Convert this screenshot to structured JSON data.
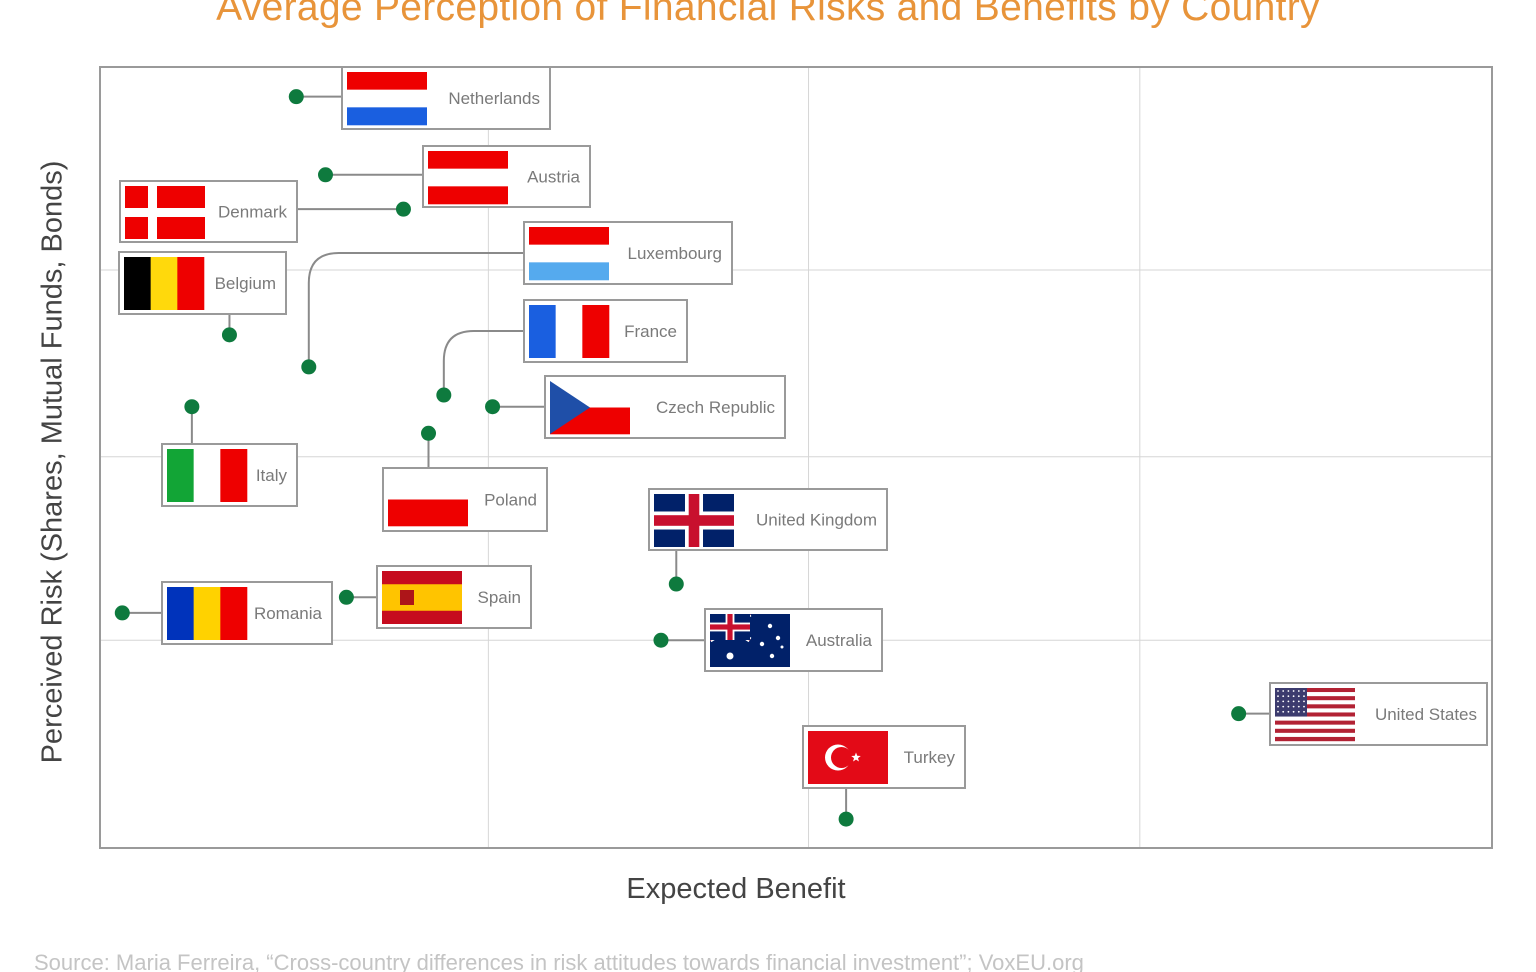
{
  "chart_data": {
    "type": "scatter",
    "title": "Average Perception of Financial Risks and Benefits by Country",
    "xlabel": "Expected Benefit",
    "ylabel": "Perceived Risk (Shares, Mutual Funds, Bonds)",
    "xlim": [
      0,
      100
    ],
    "ylim": [
      0,
      100
    ],
    "grid": true,
    "grid_x": [
      27.9,
      50.9,
      74.7
    ],
    "grid_y": [
      26.6,
      50.1,
      74.0
    ],
    "point_color": "#0E7A3E",
    "points": [
      {
        "label": "Netherlands",
        "flag": "nl",
        "x": 14.1,
        "y": 96.2
      },
      {
        "label": "Austria",
        "flag": "at",
        "x": 16.2,
        "y": 86.2
      },
      {
        "label": "Denmark",
        "flag": "dk",
        "x": 21.8,
        "y": 81.8
      },
      {
        "label": "Belgium",
        "flag": "be",
        "x": 9.3,
        "y": 65.7
      },
      {
        "label": "Luxembourg",
        "flag": "lu",
        "x": 15.0,
        "y": 61.6
      },
      {
        "label": "France",
        "flag": "fr",
        "x": 24.7,
        "y": 58.0
      },
      {
        "label": "Czech Republic",
        "flag": "cz",
        "x": 28.2,
        "y": 56.5
      },
      {
        "label": "Italy",
        "flag": "it",
        "x": 6.6,
        "y": 56.5
      },
      {
        "label": "Poland",
        "flag": "pl",
        "x": 23.6,
        "y": 53.1
      },
      {
        "label": "United Kingdom",
        "flag": "gb",
        "x": 41.4,
        "y": 33.8
      },
      {
        "label": "Romania",
        "flag": "ro",
        "x": 1.6,
        "y": 30.1
      },
      {
        "label": "Spain",
        "flag": "es",
        "x": 17.7,
        "y": 32.1
      },
      {
        "label": "Australia",
        "flag": "au",
        "x": 40.3,
        "y": 26.6
      },
      {
        "label": "United States",
        "flag": "us",
        "x": 81.8,
        "y": 17.2
      },
      {
        "label": "Turkey",
        "flag": "tr",
        "x": 53.6,
        "y": 3.7
      }
    ]
  },
  "source": "Source: Maria Ferreira, “Cross-country differences in risk attitudes towards financial investment”; VoxEU.org"
}
